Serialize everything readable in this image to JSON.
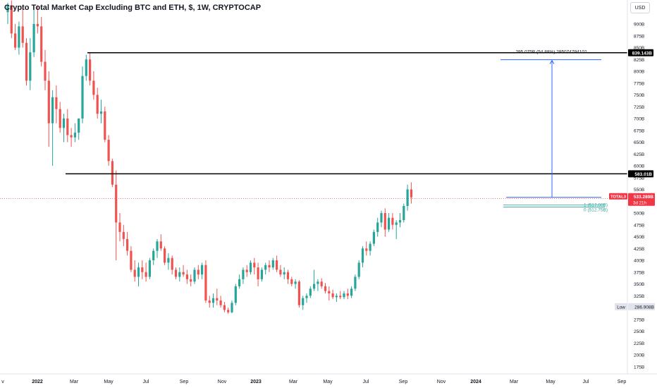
{
  "header": {
    "title": "Crypto Total Market Cap Excluding BTC and ETH, $, 1W, CRYPTOCAP",
    "currency": "USD"
  },
  "colors": {
    "up": "#26a69a",
    "down": "#ef5350",
    "line": "#000000",
    "measure": "#2962ff",
    "axis_text": "#131722",
    "grid": "#f0f3fa",
    "fib": "#26a69a",
    "price_tag": "#f23645"
  },
  "tags": {
    "level_high": "839.143B",
    "level_mid": "583.01B",
    "symbol": "TOTAL3",
    "last_price": "533.289B",
    "countdown": "3d 21h",
    "low_label": "Low",
    "low_value": "286.908B"
  },
  "measure": {
    "label": "295.075B (54.88%) 295074794102"
  },
  "fib": {
    "label_1": "1 (517.00B)",
    "label_0": "0 (512.75B)"
  },
  "chart_data": {
    "type": "candlestick",
    "title": "Crypto Total Market Cap Excluding BTC and ETH, $, 1W, CRYPTOCAP",
    "y_unit": "B USD",
    "ylim": [
      160,
      930
    ],
    "y_ticks": [
      "900B",
      "875B",
      "850B",
      "825B",
      "800B",
      "775B",
      "750B",
      "725B",
      "700B",
      "675B",
      "650B",
      "625B",
      "600B",
      "575B",
      "550B",
      "525B",
      "500B",
      "475B",
      "450B",
      "425B",
      "400B",
      "375B",
      "350B",
      "325B",
      "300B",
      "275B",
      "250B",
      "225B",
      "200B",
      "175B"
    ],
    "y_tick_values": [
      900,
      875,
      850,
      825,
      800,
      775,
      750,
      725,
      700,
      675,
      650,
      625,
      600,
      575,
      550,
      525,
      500,
      475,
      450,
      425,
      400,
      375,
      350,
      325,
      300,
      275,
      250,
      225,
      200,
      175
    ],
    "x_ticks": [
      "v",
      "2022",
      "Mar",
      "May",
      "Jul",
      "Sep",
      "Nov",
      "2023",
      "Mar",
      "May",
      "Jul",
      "Sep",
      "Nov",
      "2024",
      "Mar",
      "May",
      "Jul",
      "Sep"
    ],
    "x_tick_bold": [
      false,
      true,
      false,
      false,
      false,
      false,
      false,
      true,
      false,
      false,
      false,
      false,
      false,
      true,
      false,
      false,
      false,
      false
    ],
    "horizontal_levels": [
      839.143,
      583.01
    ],
    "last_price": 533.289,
    "low": 286.908,
    "measure_change": 295.075,
    "measure_percent": 54.88,
    "fib_levels": [
      517.0,
      512.75
    ],
    "grid": false,
    "candles": [
      {
        "o": 925,
        "h": 945,
        "l": 900,
        "c": 940
      },
      {
        "o": 940,
        "h": 950,
        "l": 870,
        "c": 880
      },
      {
        "o": 880,
        "h": 900,
        "l": 845,
        "c": 850
      },
      {
        "o": 850,
        "h": 905,
        "l": 835,
        "c": 895
      },
      {
        "o": 895,
        "h": 935,
        "l": 850,
        "c": 860
      },
      {
        "o": 860,
        "h": 870,
        "l": 770,
        "c": 780
      },
      {
        "o": 780,
        "h": 870,
        "l": 760,
        "c": 840
      },
      {
        "o": 840,
        "h": 930,
        "l": 830,
        "c": 900
      },
      {
        "o": 900,
        "h": 940,
        "l": 880,
        "c": 895
      },
      {
        "o": 895,
        "h": 915,
        "l": 810,
        "c": 820
      },
      {
        "o": 820,
        "h": 845,
        "l": 760,
        "c": 780
      },
      {
        "o": 780,
        "h": 800,
        "l": 640,
        "c": 690
      },
      {
        "o": 690,
        "h": 760,
        "l": 600,
        "c": 745
      },
      {
        "o": 745,
        "h": 770,
        "l": 690,
        "c": 720
      },
      {
        "o": 720,
        "h": 735,
        "l": 670,
        "c": 680
      },
      {
        "o": 680,
        "h": 710,
        "l": 650,
        "c": 700
      },
      {
        "o": 700,
        "h": 720,
        "l": 650,
        "c": 665
      },
      {
        "o": 665,
        "h": 680,
        "l": 640,
        "c": 660
      },
      {
        "o": 660,
        "h": 690,
        "l": 650,
        "c": 670
      },
      {
        "o": 670,
        "h": 700,
        "l": 655,
        "c": 700
      },
      {
        "o": 700,
        "h": 810,
        "l": 690,
        "c": 790
      },
      {
        "o": 790,
        "h": 835,
        "l": 780,
        "c": 825
      },
      {
        "o": 825,
        "h": 840,
        "l": 770,
        "c": 780
      },
      {
        "o": 780,
        "h": 800,
        "l": 740,
        "c": 750
      },
      {
        "o": 750,
        "h": 765,
        "l": 700,
        "c": 710
      },
      {
        "o": 710,
        "h": 740,
        "l": 690,
        "c": 715
      },
      {
        "o": 715,
        "h": 725,
        "l": 650,
        "c": 655
      },
      {
        "o": 655,
        "h": 665,
        "l": 600,
        "c": 610
      },
      {
        "o": 610,
        "h": 615,
        "l": 555,
        "c": 560
      },
      {
        "o": 560,
        "h": 590,
        "l": 400,
        "c": 480
      },
      {
        "o": 480,
        "h": 500,
        "l": 440,
        "c": 460
      },
      {
        "o": 460,
        "h": 475,
        "l": 430,
        "c": 445
      },
      {
        "o": 445,
        "h": 460,
        "l": 410,
        "c": 420
      },
      {
        "o": 420,
        "h": 430,
        "l": 375,
        "c": 380
      },
      {
        "o": 380,
        "h": 400,
        "l": 355,
        "c": 365
      },
      {
        "o": 365,
        "h": 395,
        "l": 345,
        "c": 385
      },
      {
        "o": 385,
        "h": 400,
        "l": 360,
        "c": 375
      },
      {
        "o": 375,
        "h": 395,
        "l": 355,
        "c": 365
      },
      {
        "o": 365,
        "h": 405,
        "l": 360,
        "c": 400
      },
      {
        "o": 400,
        "h": 425,
        "l": 390,
        "c": 420
      },
      {
        "o": 420,
        "h": 445,
        "l": 405,
        "c": 440
      },
      {
        "o": 440,
        "h": 455,
        "l": 420,
        "c": 425
      },
      {
        "o": 425,
        "h": 430,
        "l": 390,
        "c": 395
      },
      {
        "o": 395,
        "h": 415,
        "l": 380,
        "c": 405
      },
      {
        "o": 405,
        "h": 410,
        "l": 370,
        "c": 380
      },
      {
        "o": 380,
        "h": 385,
        "l": 360,
        "c": 365
      },
      {
        "o": 365,
        "h": 385,
        "l": 355,
        "c": 375
      },
      {
        "o": 375,
        "h": 390,
        "l": 365,
        "c": 370
      },
      {
        "o": 370,
        "h": 380,
        "l": 350,
        "c": 360
      },
      {
        "o": 360,
        "h": 370,
        "l": 345,
        "c": 355
      },
      {
        "o": 355,
        "h": 385,
        "l": 350,
        "c": 380
      },
      {
        "o": 380,
        "h": 390,
        "l": 360,
        "c": 370
      },
      {
        "o": 370,
        "h": 395,
        "l": 360,
        "c": 390
      },
      {
        "o": 390,
        "h": 400,
        "l": 310,
        "c": 315
      },
      {
        "o": 315,
        "h": 325,
        "l": 300,
        "c": 310
      },
      {
        "o": 310,
        "h": 330,
        "l": 300,
        "c": 320
      },
      {
        "o": 320,
        "h": 340,
        "l": 305,
        "c": 315
      },
      {
        "o": 315,
        "h": 325,
        "l": 300,
        "c": 305
      },
      {
        "o": 305,
        "h": 312,
        "l": 290,
        "c": 295
      },
      {
        "o": 295,
        "h": 300,
        "l": 287,
        "c": 290
      },
      {
        "o": 290,
        "h": 315,
        "l": 288,
        "c": 310
      },
      {
        "o": 310,
        "h": 350,
        "l": 305,
        "c": 345
      },
      {
        "o": 345,
        "h": 370,
        "l": 340,
        "c": 360
      },
      {
        "o": 360,
        "h": 385,
        "l": 350,
        "c": 380
      },
      {
        "o": 380,
        "h": 390,
        "l": 365,
        "c": 375
      },
      {
        "o": 375,
        "h": 400,
        "l": 370,
        "c": 395
      },
      {
        "o": 395,
        "h": 405,
        "l": 370,
        "c": 385
      },
      {
        "o": 385,
        "h": 395,
        "l": 345,
        "c": 360
      },
      {
        "o": 360,
        "h": 385,
        "l": 355,
        "c": 380
      },
      {
        "o": 380,
        "h": 395,
        "l": 370,
        "c": 390
      },
      {
        "o": 390,
        "h": 400,
        "l": 375,
        "c": 385
      },
      {
        "o": 385,
        "h": 405,
        "l": 380,
        "c": 400
      },
      {
        "o": 400,
        "h": 410,
        "l": 375,
        "c": 380
      },
      {
        "o": 380,
        "h": 390,
        "l": 365,
        "c": 370
      },
      {
        "o": 370,
        "h": 385,
        "l": 360,
        "c": 375
      },
      {
        "o": 375,
        "h": 380,
        "l": 350,
        "c": 360
      },
      {
        "o": 360,
        "h": 365,
        "l": 345,
        "c": 350
      },
      {
        "o": 350,
        "h": 360,
        "l": 340,
        "c": 355
      },
      {
        "o": 355,
        "h": 358,
        "l": 300,
        "c": 305
      },
      {
        "o": 305,
        "h": 325,
        "l": 295,
        "c": 320
      },
      {
        "o": 320,
        "h": 330,
        "l": 310,
        "c": 325
      },
      {
        "o": 325,
        "h": 345,
        "l": 320,
        "c": 340
      },
      {
        "o": 340,
        "h": 380,
        "l": 335,
        "c": 350
      },
      {
        "o": 350,
        "h": 360,
        "l": 335,
        "c": 355
      },
      {
        "o": 355,
        "h": 362,
        "l": 340,
        "c": 345
      },
      {
        "o": 345,
        "h": 352,
        "l": 330,
        "c": 335
      },
      {
        "o": 335,
        "h": 345,
        "l": 315,
        "c": 330
      },
      {
        "o": 330,
        "h": 338,
        "l": 318,
        "c": 322
      },
      {
        "o": 322,
        "h": 330,
        "l": 312,
        "c": 325
      },
      {
        "o": 325,
        "h": 335,
        "l": 318,
        "c": 322
      },
      {
        "o": 322,
        "h": 335,
        "l": 318,
        "c": 330
      },
      {
        "o": 330,
        "h": 340,
        "l": 318,
        "c": 325
      },
      {
        "o": 325,
        "h": 345,
        "l": 320,
        "c": 340
      },
      {
        "o": 340,
        "h": 370,
        "l": 335,
        "c": 365
      },
      {
        "o": 365,
        "h": 400,
        "l": 360,
        "c": 395
      },
      {
        "o": 395,
        "h": 430,
        "l": 385,
        "c": 425
      },
      {
        "o": 425,
        "h": 440,
        "l": 410,
        "c": 420
      },
      {
        "o": 420,
        "h": 440,
        "l": 410,
        "c": 435
      },
      {
        "o": 435,
        "h": 465,
        "l": 430,
        "c": 460
      },
      {
        "o": 460,
        "h": 490,
        "l": 450,
        "c": 480
      },
      {
        "o": 480,
        "h": 505,
        "l": 470,
        "c": 500
      },
      {
        "o": 500,
        "h": 510,
        "l": 450,
        "c": 465
      },
      {
        "o": 465,
        "h": 500,
        "l": 460,
        "c": 490
      },
      {
        "o": 490,
        "h": 500,
        "l": 465,
        "c": 475
      },
      {
        "o": 475,
        "h": 485,
        "l": 445,
        "c": 480
      },
      {
        "o": 480,
        "h": 500,
        "l": 470,
        "c": 485
      },
      {
        "o": 485,
        "h": 520,
        "l": 480,
        "c": 515
      },
      {
        "o": 515,
        "h": 560,
        "l": 505,
        "c": 550
      },
      {
        "o": 550,
        "h": 565,
        "l": 520,
        "c": 533.289
      }
    ]
  }
}
